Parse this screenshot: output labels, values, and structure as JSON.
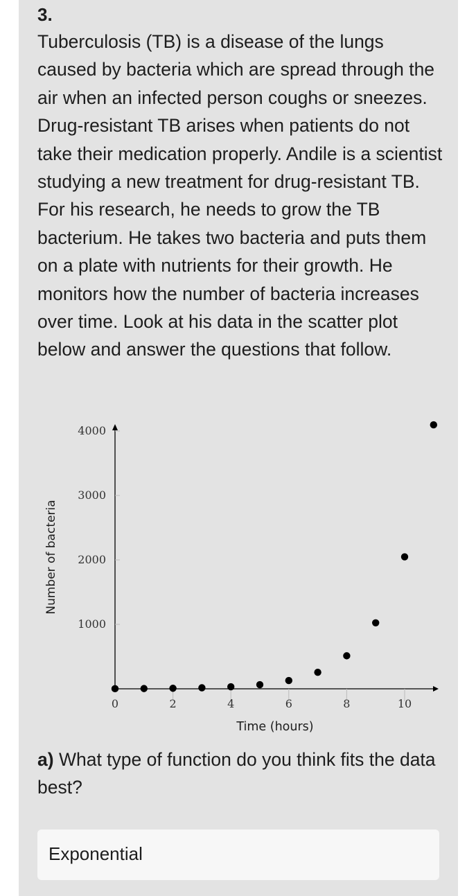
{
  "question": {
    "number": "3.",
    "text": "Tuberculosis (TB) is a disease of the lungs caused by bacteria which are spread through the air when an infected person coughs or sneezes. Drug-resistant TB arises when patients do not take their medication properly. Andile is a scientist studying a new treatment for drug-resistant TB. For his research, he needs to grow the TB bacterium. He takes two bacteria and puts them on a plate with nutrients for their growth. He monitors how the number of bacteria increases over time. Look at his data in the scatter plot below and answer the questions that follow."
  },
  "chart_data": {
    "type": "scatter",
    "title": "",
    "xlabel": "Time (hours)",
    "ylabel": "Number of bacteria",
    "xlim": [
      0,
      11
    ],
    "ylim": [
      0,
      4300
    ],
    "x_ticks": [
      0,
      2,
      4,
      6,
      8,
      10
    ],
    "y_ticks": [
      1000,
      2000,
      3000,
      4000
    ],
    "grid": false,
    "points": [
      {
        "x": 0,
        "y": 2
      },
      {
        "x": 1,
        "y": 4
      },
      {
        "x": 2,
        "y": 8
      },
      {
        "x": 3,
        "y": 16
      },
      {
        "x": 4,
        "y": 32
      },
      {
        "x": 5,
        "y": 64
      },
      {
        "x": 6,
        "y": 128
      },
      {
        "x": 7,
        "y": 256
      },
      {
        "x": 8,
        "y": 512
      },
      {
        "x": 9,
        "y": 1024
      },
      {
        "x": 10,
        "y": 2048
      },
      {
        "x": 11,
        "y": 4096
      }
    ]
  },
  "part_a": {
    "label": "a)",
    "text": "What type of function do you think fits the data best?",
    "answer": "Exponential"
  }
}
